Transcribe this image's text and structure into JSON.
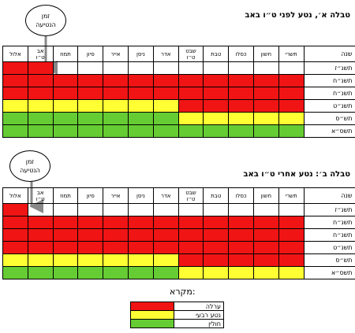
{
  "tables": [
    {
      "title": "טבלה א׳, נטע לפני ט״ו באב",
      "header": [
        "שנה",
        "תשרי",
        "חשון",
        "כסלו",
        "טבת",
        "שבט\nט״ו",
        "אדר",
        "ניסן",
        "אייר",
        "סיון",
        "תמוז",
        "אב\nט״ו",
        "אלול"
      ],
      "rows": [
        {
          "label": "תשנ״ז",
          "cells": [
            "",
            "",
            "",
            "",
            "",
            "",
            "",
            "",
            "",
            "",
            "r",
            "r"
          ]
        },
        {
          "label": "תשנ״ח",
          "cells": [
            "r",
            "r",
            "r",
            "r",
            "r",
            "r",
            "r",
            "r",
            "r",
            "r",
            "r",
            "r"
          ]
        },
        {
          "label": "תשנ״ח",
          "cells": [
            "r",
            "r",
            "r",
            "r",
            "r",
            "r",
            "r",
            "r",
            "r",
            "r",
            "r",
            "r"
          ]
        },
        {
          "label": "תשנ״ט",
          "cells": [
            "r",
            "r",
            "r",
            "r",
            "r",
            "y",
            "y",
            "y",
            "y",
            "y",
            "y",
            "y"
          ]
        },
        {
          "label": "תש״ס",
          "cells": [
            "y",
            "y",
            "y",
            "y",
            "y",
            "g",
            "g",
            "g",
            "g",
            "g",
            "g",
            "g"
          ]
        },
        {
          "label": "תשס״א",
          "cells": [
            "g",
            "g",
            "g",
            "g",
            "g",
            "g",
            "g",
            "g",
            "g",
            "g",
            "g",
            "g"
          ]
        }
      ]
    },
    {
      "title": "טבלה ב׳: נטע אחרי ט״ו באב",
      "header": [
        "שנה",
        "תשרי",
        "חשון",
        "כסלו",
        "טבת",
        "שבט\nט״ו",
        "אדר",
        "ניסן",
        "אייר",
        "סיון",
        "תמוז",
        "אב\nט״ו",
        "אלול"
      ],
      "rows": [
        {
          "label": "תשנ״ז",
          "cells": [
            "",
            "",
            "",
            "",
            "",
            "",
            "",
            "",
            "",
            "",
            "",
            "r"
          ]
        },
        {
          "label": "תשנ״ח",
          "cells": [
            "r",
            "r",
            "r",
            "r",
            "r",
            "r",
            "r",
            "r",
            "r",
            "r",
            "r",
            "r"
          ]
        },
        {
          "label": "תשנ״ח",
          "cells": [
            "r",
            "r",
            "r",
            "r",
            "r",
            "r",
            "r",
            "r",
            "r",
            "r",
            "r",
            "r"
          ]
        },
        {
          "label": "תשנ״ט",
          "cells": [
            "r",
            "r",
            "r",
            "r",
            "r",
            "r",
            "r",
            "r",
            "r",
            "r",
            "r",
            "r"
          ]
        },
        {
          "label": "תש״ס",
          "cells": [
            "r",
            "r",
            "r",
            "r",
            "r",
            "y",
            "y",
            "y",
            "y",
            "y",
            "y",
            "y"
          ]
        },
        {
          "label": "תשס״א",
          "cells": [
            "y",
            "y",
            "y",
            "y",
            "y",
            "g",
            "g",
            "g",
            "g",
            "g",
            "g",
            "g"
          ]
        }
      ]
    }
  ],
  "bubble": [
    "זמן",
    "הנטיעה"
  ],
  "legend": {
    "title": "מקרא:",
    "items": [
      {
        "key": "r",
        "label": "ערלה",
        "color": "#f01414"
      },
      {
        "key": "y",
        "label": "נטע רבעי",
        "color": "#ffff33"
      },
      {
        "key": "g",
        "label": "חולין",
        "color": "#66cc33"
      }
    ]
  }
}
